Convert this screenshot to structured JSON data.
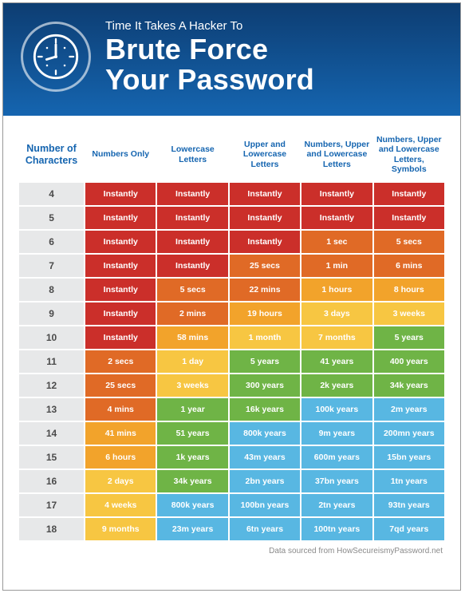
{
  "header": {
    "super": "Time It Takes A Hacker To",
    "title_line1": "Brute Force",
    "title_line2": "Your Password",
    "icon_name": "clock-icon",
    "bg_top": "#0d3d72",
    "bg_bottom": "#1565b0"
  },
  "table": {
    "head": {
      "c0": "Number of Characters",
      "c1": "Numbers Only",
      "c2": "Lowercase Letters",
      "c3": "Upper and Lowercase Letters",
      "c4": "Numbers, Upper and Lowercase Letters",
      "c5": "Numbers, Upper and Lowercase Letters, Symbols",
      "header_color": "#1565b0"
    },
    "row_label_bg": "#e7e8e9",
    "row_label_fg": "#4a4a4a",
    "colors": {
      "red": "#cb2f2a",
      "darkorange": "#e06a26",
      "orange": "#f2a32b",
      "yellow": "#f7c642",
      "green": "#6fb446",
      "blue": "#58b7e2"
    },
    "rows": [
      {
        "n": "4",
        "cells": [
          {
            "v": "Instantly",
            "c": "red"
          },
          {
            "v": "Instantly",
            "c": "red"
          },
          {
            "v": "Instantly",
            "c": "red"
          },
          {
            "v": "Instantly",
            "c": "red"
          },
          {
            "v": "Instantly",
            "c": "red"
          }
        ]
      },
      {
        "n": "5",
        "cells": [
          {
            "v": "Instantly",
            "c": "red"
          },
          {
            "v": "Instantly",
            "c": "red"
          },
          {
            "v": "Instantly",
            "c": "red"
          },
          {
            "v": "Instantly",
            "c": "red"
          },
          {
            "v": "Instantly",
            "c": "red"
          }
        ]
      },
      {
        "n": "6",
        "cells": [
          {
            "v": "Instantly",
            "c": "red"
          },
          {
            "v": "Instantly",
            "c": "red"
          },
          {
            "v": "Instantly",
            "c": "red"
          },
          {
            "v": "1 sec",
            "c": "darkorange"
          },
          {
            "v": "5 secs",
            "c": "darkorange"
          }
        ]
      },
      {
        "n": "7",
        "cells": [
          {
            "v": "Instantly",
            "c": "red"
          },
          {
            "v": "Instantly",
            "c": "red"
          },
          {
            "v": "25 secs",
            "c": "darkorange"
          },
          {
            "v": "1 min",
            "c": "darkorange"
          },
          {
            "v": "6 mins",
            "c": "darkorange"
          }
        ]
      },
      {
        "n": "8",
        "cells": [
          {
            "v": "Instantly",
            "c": "red"
          },
          {
            "v": "5 secs",
            "c": "darkorange"
          },
          {
            "v": "22 mins",
            "c": "darkorange"
          },
          {
            "v": "1 hours",
            "c": "orange"
          },
          {
            "v": "8 hours",
            "c": "orange"
          }
        ]
      },
      {
        "n": "9",
        "cells": [
          {
            "v": "Instantly",
            "c": "red"
          },
          {
            "v": "2 mins",
            "c": "darkorange"
          },
          {
            "v": "19 hours",
            "c": "orange"
          },
          {
            "v": "3 days",
            "c": "yellow"
          },
          {
            "v": "3 weeks",
            "c": "yellow"
          }
        ]
      },
      {
        "n": "10",
        "cells": [
          {
            "v": "Instantly",
            "c": "red"
          },
          {
            "v": "58 mins",
            "c": "orange"
          },
          {
            "v": "1 month",
            "c": "yellow"
          },
          {
            "v": "7 months",
            "c": "yellow"
          },
          {
            "v": "5 years",
            "c": "green"
          }
        ]
      },
      {
        "n": "11",
        "cells": [
          {
            "v": "2 secs",
            "c": "darkorange"
          },
          {
            "v": "1 day",
            "c": "yellow"
          },
          {
            "v": "5 years",
            "c": "green"
          },
          {
            "v": "41 years",
            "c": "green"
          },
          {
            "v": "400 years",
            "c": "green"
          }
        ]
      },
      {
        "n": "12",
        "cells": [
          {
            "v": "25 secs",
            "c": "darkorange"
          },
          {
            "v": "3 weeks",
            "c": "yellow"
          },
          {
            "v": "300 years",
            "c": "green"
          },
          {
            "v": "2k years",
            "c": "green"
          },
          {
            "v": "34k years",
            "c": "green"
          }
        ]
      },
      {
        "n": "13",
        "cells": [
          {
            "v": "4 mins",
            "c": "darkorange"
          },
          {
            "v": "1 year",
            "c": "green"
          },
          {
            "v": "16k years",
            "c": "green"
          },
          {
            "v": "100k years",
            "c": "blue"
          },
          {
            "v": "2m years",
            "c": "blue"
          }
        ]
      },
      {
        "n": "14",
        "cells": [
          {
            "v": "41 mins",
            "c": "orange"
          },
          {
            "v": "51 years",
            "c": "green"
          },
          {
            "v": "800k years",
            "c": "blue"
          },
          {
            "v": "9m years",
            "c": "blue"
          },
          {
            "v": "200mn years",
            "c": "blue"
          }
        ]
      },
      {
        "n": "15",
        "cells": [
          {
            "v": "6 hours",
            "c": "orange"
          },
          {
            "v": "1k years",
            "c": "green"
          },
          {
            "v": "43m years",
            "c": "blue"
          },
          {
            "v": "600m years",
            "c": "blue"
          },
          {
            "v": "15bn years",
            "c": "blue"
          }
        ]
      },
      {
        "n": "16",
        "cells": [
          {
            "v": "2 days",
            "c": "yellow"
          },
          {
            "v": "34k years",
            "c": "green"
          },
          {
            "v": "2bn years",
            "c": "blue"
          },
          {
            "v": "37bn years",
            "c": "blue"
          },
          {
            "v": "1tn years",
            "c": "blue"
          }
        ]
      },
      {
        "n": "17",
        "cells": [
          {
            "v": "4 weeks",
            "c": "yellow"
          },
          {
            "v": "800k years",
            "c": "blue"
          },
          {
            "v": "100bn years",
            "c": "blue"
          },
          {
            "v": "2tn years",
            "c": "blue"
          },
          {
            "v": "93tn years",
            "c": "blue"
          }
        ]
      },
      {
        "n": "18",
        "cells": [
          {
            "v": "9 months",
            "c": "yellow"
          },
          {
            "v": "23m years",
            "c": "blue"
          },
          {
            "v": "6tn years",
            "c": "blue"
          },
          {
            "v": "100tn years",
            "c": "blue"
          },
          {
            "v": "7qd years",
            "c": "blue"
          }
        ]
      }
    ]
  },
  "source": "Data sourced from HowSecureismyPassword.net"
}
